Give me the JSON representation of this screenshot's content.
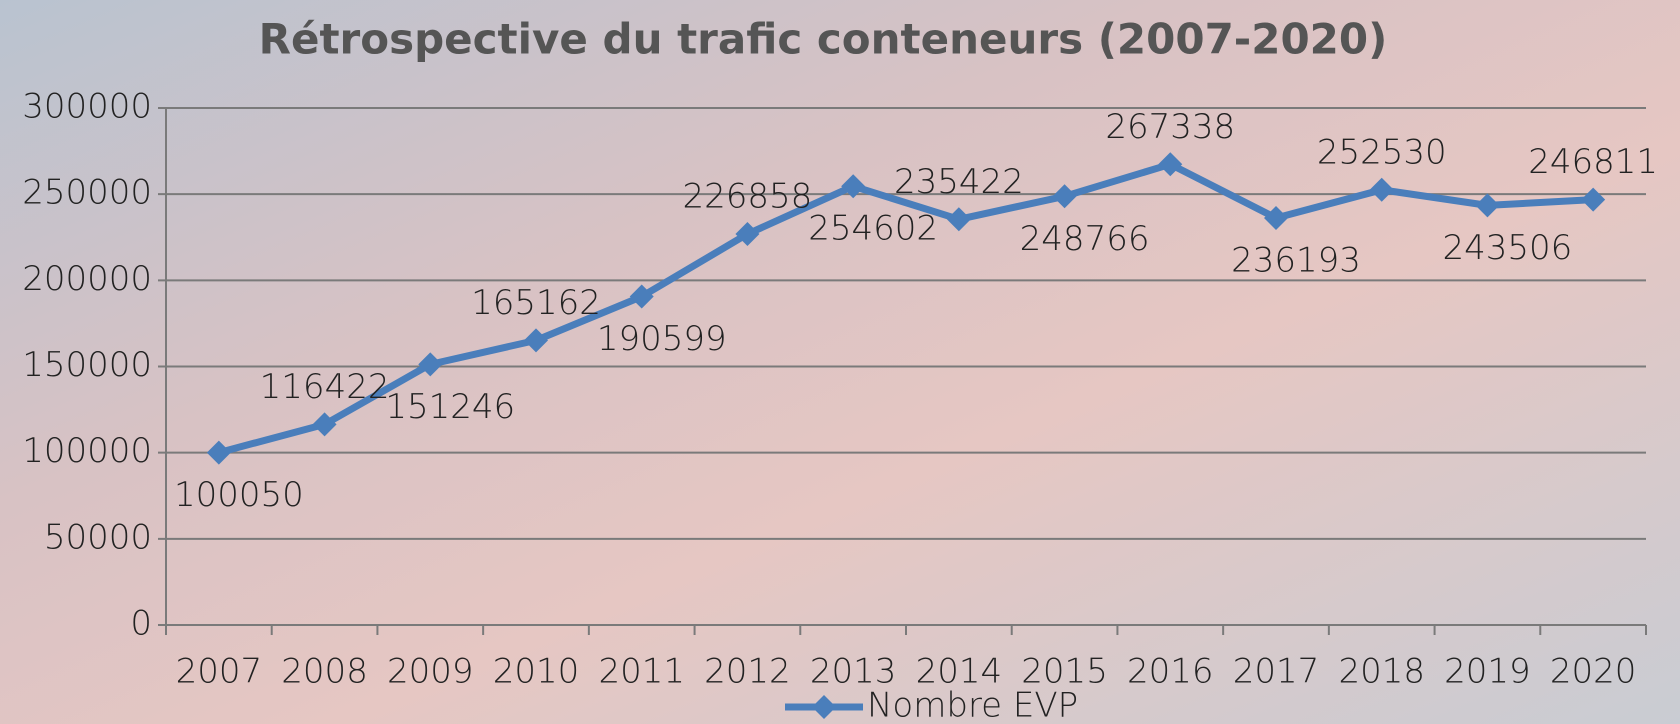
{
  "chart_data": {
    "type": "line",
    "title": "Rétrospective du trafic conteneurs (2007-2020)",
    "categories": [
      "2007",
      "2008",
      "2009",
      "2010",
      "2011",
      "2012",
      "2013",
      "2014",
      "2015",
      "2016",
      "2017",
      "2018",
      "2019",
      "2020"
    ],
    "series": [
      {
        "name": "Nombre EVP",
        "color": "#4a7ebb",
        "values": [
          100050,
          116422,
          151246,
          165162,
          190599,
          226858,
          254602,
          235422,
          248766,
          267338,
          236193,
          252530,
          243506,
          246811
        ]
      }
    ],
    "ylim": [
      0,
      300000
    ],
    "yticks": [
      0,
      50000,
      100000,
      150000,
      200000,
      250000,
      300000
    ],
    "grid": true,
    "legend": "bottom"
  }
}
